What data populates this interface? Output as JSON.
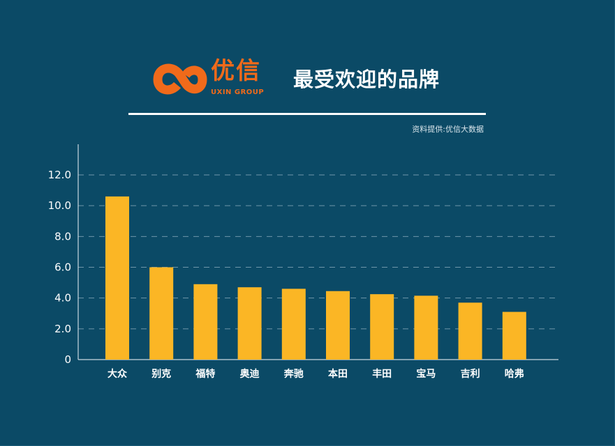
{
  "header": {
    "logo_text": "优信",
    "logo_subtext": "UXIN GROUP",
    "title": "最受欢迎的品牌",
    "source": "资料提供:优信大数据"
  },
  "colors": {
    "background": "#0b4a66",
    "bar": "#fbb625",
    "logo": "#f06a1a",
    "text": "#ffffff"
  },
  "icons": {
    "logo": "uxin-logo-icon"
  },
  "chart_data": {
    "type": "bar",
    "title": "最受欢迎的品牌",
    "categories": [
      "大众",
      "别克",
      "福特",
      "奥迪",
      "奔驰",
      "本田",
      "丰田",
      "宝马",
      "吉利",
      "哈弗"
    ],
    "values": [
      10.6,
      6.0,
      4.9,
      4.7,
      4.6,
      4.45,
      4.25,
      4.15,
      3.7,
      3.1
    ],
    "ylim": [
      0,
      12
    ],
    "yticks": [
      "0",
      "2.0",
      "4.0",
      "6.0",
      "8.0",
      "10.0",
      "12.0"
    ],
    "ytick_values": [
      0,
      2,
      4,
      6,
      8,
      10,
      12
    ],
    "xlabel": "",
    "ylabel": "",
    "grid": true,
    "legend": "none"
  }
}
